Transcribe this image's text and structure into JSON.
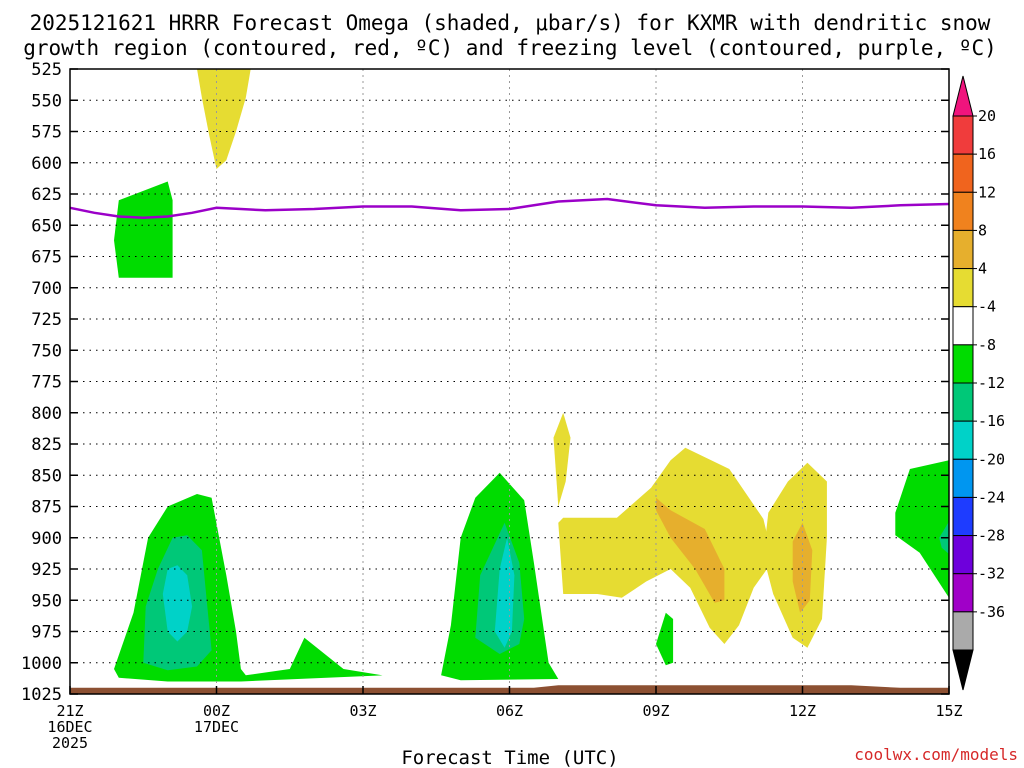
{
  "chart_data": {
    "type": "heatmap",
    "title_lines": [
      "2025121621 HRRR Forecast Omega (shaded, μbar/s) for KXMR with dendritic snow",
      "growth region (contoured, red, ºC) and freezing level (contoured, purple, ºC)"
    ],
    "xlabel": "Forecast Time (UTC)",
    "credit": "coolwx.com/models",
    "x_range_hours": [
      0,
      18
    ],
    "y_range_hpa": [
      525,
      1025
    ],
    "y_ticks": [
      525,
      550,
      575,
      600,
      625,
      650,
      675,
      700,
      725,
      750,
      775,
      800,
      825,
      850,
      875,
      900,
      925,
      950,
      975,
      1000,
      1025
    ],
    "x_ticks": [
      {
        "hour": 0,
        "lines": [
          "21Z",
          "16DEC",
          "2025"
        ]
      },
      {
        "hour": 3,
        "lines": [
          "00Z",
          "17DEC"
        ]
      },
      {
        "hour": 6,
        "lines": [
          "03Z"
        ]
      },
      {
        "hour": 9,
        "lines": [
          "06Z"
        ]
      },
      {
        "hour": 12,
        "lines": [
          "09Z"
        ]
      },
      {
        "hour": 15,
        "lines": [
          "12Z"
        ]
      },
      {
        "hour": 18,
        "lines": [
          "15Z"
        ]
      }
    ],
    "colorbar": {
      "labels": [
        "20",
        "16",
        "12",
        "8",
        "4",
        "-4",
        "-8",
        "-12",
        "-16",
        "-20",
        "-24",
        "-28",
        "-32",
        "-36"
      ],
      "colors_top_to_bottom": [
        "#f0147d",
        "#f03c3c",
        "#f0641e",
        "#f0821e",
        "#e6af2d",
        "#e6dc32",
        "#ffffff",
        "#00dc00",
        "#00c878",
        "#00d2c8",
        "#0096f0",
        "#1e3cff",
        "#6e00dc",
        "#a000c8",
        "#aaaaaa",
        "#000000"
      ]
    },
    "freezing_level_hpa": [
      [
        0,
        636
      ],
      [
        0.5,
        640
      ],
      [
        1.0,
        643
      ],
      [
        1.5,
        644
      ],
      [
        2.0,
        643
      ],
      [
        2.5,
        640
      ],
      [
        3.0,
        636
      ],
      [
        3.5,
        637
      ],
      [
        4.0,
        638
      ],
      [
        5.0,
        637
      ],
      [
        6.0,
        635
      ],
      [
        7.0,
        635
      ],
      [
        8.0,
        638
      ],
      [
        9.0,
        637
      ],
      [
        10.0,
        631
      ],
      [
        11.0,
        629
      ],
      [
        12.0,
        634
      ],
      [
        13.0,
        636
      ],
      [
        14.0,
        635
      ],
      [
        15.0,
        635
      ],
      [
        16.0,
        636
      ],
      [
        17.0,
        634
      ],
      [
        18.0,
        633
      ]
    ],
    "omega_regions": [
      {
        "level": "4 to 8",
        "color": "#e6dc32",
        "points": [
          [
            2.6,
            525
          ],
          [
            3.7,
            525
          ],
          [
            3.6,
            548
          ],
          [
            3.4,
            575
          ],
          [
            3.2,
            598
          ],
          [
            3.0,
            605
          ],
          [
            2.85,
            578
          ],
          [
            2.7,
            548
          ]
        ]
      },
      {
        "level": "-4 to -8",
        "color": "#00dc00",
        "points": [
          [
            1.0,
            630
          ],
          [
            2.0,
            615
          ],
          [
            2.1,
            630
          ],
          [
            2.1,
            692
          ],
          [
            1.0,
            692
          ],
          [
            0.9,
            662
          ]
        ]
      },
      {
        "level": "-4 to -8",
        "color": "#00dc00",
        "points": [
          [
            0.9,
            1005
          ],
          [
            1.3,
            960
          ],
          [
            1.6,
            900
          ],
          [
            2.0,
            875
          ],
          [
            2.6,
            865
          ],
          [
            2.9,
            868
          ],
          [
            3.2,
            930
          ],
          [
            3.4,
            975
          ],
          [
            3.5,
            1005
          ],
          [
            3.6,
            1010
          ],
          [
            4.5,
            1005
          ],
          [
            4.8,
            980
          ],
          [
            5.6,
            1005
          ],
          [
            6.4,
            1010
          ],
          [
            3.5,
            1015
          ],
          [
            2.0,
            1015
          ],
          [
            1.0,
            1012
          ]
        ]
      },
      {
        "level": "-8 to -12",
        "color": "#00c878",
        "points": [
          [
            1.5,
            1000
          ],
          [
            1.55,
            955
          ],
          [
            1.8,
            925
          ],
          [
            2.1,
            900
          ],
          [
            2.4,
            898
          ],
          [
            2.7,
            910
          ],
          [
            2.8,
            950
          ],
          [
            2.9,
            990
          ],
          [
            2.6,
            1003
          ],
          [
            2.0,
            1006
          ]
        ]
      },
      {
        "level": "-12 to -16",
        "color": "#00d2c8",
        "points": [
          [
            2.0,
            975
          ],
          [
            1.9,
            945
          ],
          [
            2.0,
            925
          ],
          [
            2.2,
            922
          ],
          [
            2.4,
            930
          ],
          [
            2.5,
            955
          ],
          [
            2.4,
            975
          ],
          [
            2.2,
            983
          ]
        ]
      },
      {
        "level": "-4 to -8",
        "color": "#00dc00",
        "points": [
          [
            7.6,
            1010
          ],
          [
            7.8,
            970
          ],
          [
            8.0,
            900
          ],
          [
            8.3,
            868
          ],
          [
            8.8,
            848
          ],
          [
            9.3,
            870
          ],
          [
            9.5,
            920
          ],
          [
            9.8,
            1000
          ],
          [
            10.0,
            1013
          ],
          [
            8.0,
            1014
          ]
        ]
      },
      {
        "level": "-8 to -12",
        "color": "#00c878",
        "points": [
          [
            8.3,
            980
          ],
          [
            8.4,
            930
          ],
          [
            8.9,
            888
          ],
          [
            9.2,
            920
          ],
          [
            9.3,
            965
          ],
          [
            9.2,
            985
          ],
          [
            8.8,
            993
          ]
        ]
      },
      {
        "level": "-12 to -16",
        "color": "#00d2c8",
        "points": [
          [
            8.7,
            975
          ],
          [
            8.8,
            925
          ],
          [
            8.95,
            900
          ],
          [
            9.1,
            930
          ],
          [
            9.05,
            975
          ],
          [
            8.9,
            988
          ]
        ]
      },
      {
        "level": "4 to 8",
        "color": "#e6dc32",
        "points": [
          [
            9.9,
            820
          ],
          [
            10.1,
            800
          ],
          [
            10.25,
            820
          ],
          [
            10.15,
            855
          ],
          [
            10.0,
            875
          ]
        ]
      },
      {
        "level": "4 to 8",
        "color": "#e6dc32",
        "points": [
          [
            10.0,
            888
          ],
          [
            10.1,
            884
          ],
          [
            11.2,
            884
          ],
          [
            11.9,
            860
          ],
          [
            12.3,
            838
          ],
          [
            12.6,
            828
          ],
          [
            13.5,
            845
          ],
          [
            14.2,
            885
          ],
          [
            14.4,
            918
          ],
          [
            14.0,
            940
          ],
          [
            13.7,
            970
          ],
          [
            13.4,
            985
          ],
          [
            13.1,
            972
          ],
          [
            12.7,
            940
          ],
          [
            12.3,
            925
          ],
          [
            11.8,
            935
          ],
          [
            11.3,
            948
          ],
          [
            10.8,
            945
          ],
          [
            10.1,
            945
          ]
        ]
      },
      {
        "level": "8 to 12",
        "color": "#e6af2d",
        "points": [
          [
            12.0,
            878
          ],
          [
            12.0,
            868
          ],
          [
            12.3,
            878
          ],
          [
            13.0,
            893
          ],
          [
            13.4,
            925
          ],
          [
            13.4,
            950
          ],
          [
            13.2,
            952
          ],
          [
            12.8,
            925
          ],
          [
            12.3,
            900
          ]
        ]
      },
      {
        "level": "4 to 8",
        "color": "#e6dc32",
        "points": [
          [
            14.3,
            880
          ],
          [
            14.7,
            855
          ],
          [
            15.1,
            840
          ],
          [
            15.5,
            855
          ],
          [
            15.5,
            900
          ],
          [
            15.4,
            965
          ],
          [
            15.1,
            988
          ],
          [
            14.8,
            980
          ],
          [
            14.4,
            945
          ],
          [
            14.2,
            915
          ]
        ]
      },
      {
        "level": "8 to 12",
        "color": "#e6af2d",
        "points": [
          [
            14.8,
            903
          ],
          [
            15.0,
            888
          ],
          [
            15.2,
            910
          ],
          [
            15.15,
            950
          ],
          [
            14.95,
            960
          ],
          [
            14.8,
            935
          ]
        ]
      },
      {
        "level": "-4 to -8",
        "color": "#00dc00",
        "points": [
          [
            12.0,
            985
          ],
          [
            12.2,
            960
          ],
          [
            12.35,
            965
          ],
          [
            12.35,
            1000
          ],
          [
            12.2,
            1002
          ]
        ]
      },
      {
        "level": "-4 to -8",
        "color": "#00dc00",
        "points": [
          [
            16.9,
            880
          ],
          [
            17.2,
            845
          ],
          [
            18.0,
            838
          ],
          [
            18.0,
            948
          ],
          [
            17.4,
            912
          ],
          [
            16.9,
            898
          ]
        ]
      },
      {
        "level": "-8 to -12",
        "color": "#00c878",
        "points": [
          [
            17.8,
            900
          ],
          [
            18.0,
            887
          ],
          [
            18.0,
            913
          ],
          [
            17.85,
            908
          ]
        ]
      }
    ],
    "ground_region": {
      "color": "#8c5032",
      "points": [
        [
          0,
          1020
        ],
        [
          9.5,
          1020
        ],
        [
          10.0,
          1018
        ],
        [
          16.0,
          1018
        ],
        [
          17.0,
          1020
        ],
        [
          18.0,
          1020
        ],
        [
          18.0,
          1025
        ],
        [
          0,
          1025
        ]
      ]
    }
  }
}
